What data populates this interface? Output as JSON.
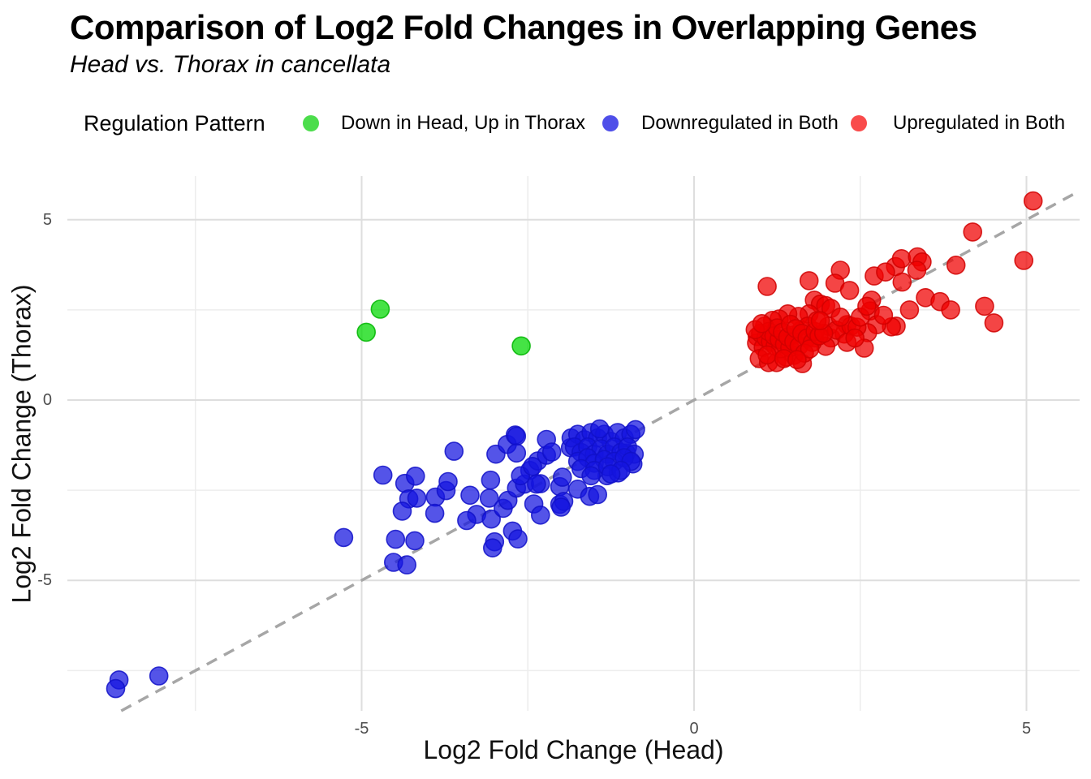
{
  "title": "Comparison of Log2 Fold Changes in Overlapping Genes",
  "subtitle": "Head vs. Thorax in cancellata",
  "legend": {
    "title": "Regulation Pattern",
    "items": [
      {
        "label": "Down in Head, Up in Thorax",
        "color": "#4cdd4c"
      },
      {
        "label": "Downregulated in Both",
        "color": "#4f4fe9"
      },
      {
        "label": "Upregulated in Both",
        "color": "#f94b4b"
      }
    ]
  },
  "styles": {
    "background": "#ffffff",
    "major_grid": "#dedede",
    "minor_grid": "#ededed",
    "tick_color": "#4d4d4d",
    "identity_line_color": "#a6a6a6",
    "title_color": "#000000"
  },
  "chart_data": {
    "type": "scatter",
    "title": "Comparison of Log2 Fold Changes in Overlapping Genes",
    "subtitle": "Head vs. Thorax in cancellata",
    "xlabel": "Log2 Fold Change (Head)",
    "ylabel": "Log2 Fold Change (Thorax)",
    "legend_title": "Regulation Pattern",
    "legend_position": "top",
    "grid": true,
    "xlim": [
      -9.4,
      5.8
    ],
    "ylim": [
      -8.6,
      6.2
    ],
    "x_major_ticks": [
      -5,
      0,
      5
    ],
    "x_minor_ticks": [
      -7.5,
      -2.5,
      2.5
    ],
    "y_major_ticks": [
      5,
      0,
      -5
    ],
    "y_minor_ticks": [
      2.5,
      -2.5,
      -7.5
    ],
    "identity_line": {
      "style": "dashed",
      "equation": "y = x"
    },
    "series": [
      {
        "name": "Down in Head, Up in Thorax",
        "color_base": "#00d800",
        "stroke": "#00b400",
        "points": [
          [
            -4.72,
            2.52
          ],
          [
            -4.93,
            1.88
          ],
          [
            -2.6,
            1.5
          ]
        ]
      },
      {
        "name": "Downregulated in Both",
        "color_base": "#1515e0",
        "stroke": "#1111c8",
        "points": [
          [
            -8.65,
            -7.76
          ],
          [
            -8.7,
            -8.0
          ],
          [
            -8.05,
            -7.65
          ],
          [
            -5.27,
            -3.81
          ],
          [
            -4.68,
            -2.08
          ],
          [
            -4.35,
            -2.31
          ],
          [
            -4.19,
            -2.11
          ],
          [
            -4.29,
            -2.74
          ],
          [
            -4.17,
            -2.72
          ],
          [
            -4.39,
            -3.08
          ],
          [
            -4.49,
            -3.86
          ],
          [
            -4.2,
            -3.9
          ],
          [
            -4.52,
            -4.5
          ],
          [
            -4.32,
            -4.57
          ],
          [
            -3.89,
            -2.69
          ],
          [
            -3.73,
            -2.51
          ],
          [
            -3.7,
            -2.26
          ],
          [
            -3.61,
            -1.42
          ],
          [
            -3.37,
            -2.64
          ],
          [
            -3.27,
            -3.17
          ],
          [
            -3.42,
            -3.34
          ],
          [
            -3.9,
            -3.14
          ],
          [
            -3.06,
            -2.22
          ],
          [
            -2.98,
            -1.5
          ],
          [
            -2.81,
            -1.23
          ],
          [
            -2.69,
            -0.97
          ],
          [
            -3.08,
            -2.72
          ],
          [
            -3.05,
            -3.3
          ],
          [
            -2.87,
            -3.0
          ],
          [
            -2.8,
            -2.78
          ],
          [
            -2.67,
            -2.44
          ],
          [
            -2.55,
            -2.33
          ],
          [
            -2.47,
            -1.95
          ],
          [
            -2.35,
            -1.69
          ],
          [
            -2.22,
            -1.53
          ],
          [
            -2.31,
            -2.32
          ],
          [
            -2.41,
            -2.88
          ],
          [
            -2.73,
            -3.63
          ],
          [
            -2.65,
            -3.85
          ],
          [
            -3.0,
            -3.93
          ],
          [
            -3.03,
            -4.1
          ],
          [
            -2.31,
            -3.19
          ],
          [
            -2.02,
            -2.89
          ],
          [
            -2.67,
            -1.0
          ],
          [
            -2.67,
            -1.47
          ],
          [
            -2.61,
            -2.1
          ],
          [
            -2.43,
            -1.84
          ],
          [
            -2.37,
            -2.33
          ],
          [
            -2.22,
            -1.09
          ],
          [
            -2.14,
            -1.44
          ],
          [
            -2.02,
            -2.4
          ],
          [
            -1.96,
            -2.81
          ],
          [
            -1.98,
            -2.14
          ],
          [
            -1.86,
            -1.32
          ],
          [
            -1.75,
            -2.47
          ],
          [
            -1.57,
            -2.67
          ],
          [
            -1.45,
            -2.62
          ],
          [
            -1.31,
            -2.1
          ],
          [
            -1.14,
            -2.02
          ],
          [
            -1.02,
            -1.47
          ],
          [
            -0.92,
            -1.77
          ],
          [
            -2.0,
            -2.97
          ],
          [
            -1.85,
            -1.05
          ],
          [
            -1.75,
            -0.95
          ],
          [
            -1.65,
            -1.1
          ],
          [
            -1.55,
            -0.9
          ],
          [
            -1.45,
            -1.05
          ],
          [
            -1.35,
            -0.95
          ],
          [
            -1.25,
            -1.15
          ],
          [
            -1.15,
            -0.9
          ],
          [
            -1.05,
            -1.05
          ],
          [
            -0.95,
            -0.95
          ],
          [
            -1.8,
            -1.3
          ],
          [
            -1.7,
            -1.45
          ],
          [
            -1.6,
            -1.3
          ],
          [
            -1.5,
            -1.5
          ],
          [
            -1.4,
            -1.35
          ],
          [
            -1.3,
            -1.5
          ],
          [
            -1.2,
            -1.3
          ],
          [
            -1.1,
            -1.45
          ],
          [
            -1.0,
            -1.3
          ],
          [
            -0.9,
            -1.5
          ],
          [
            -1.75,
            -1.7
          ],
          [
            -1.6,
            -1.6
          ],
          [
            -1.5,
            -1.75
          ],
          [
            -1.35,
            -1.65
          ],
          [
            -1.2,
            -1.7
          ],
          [
            -1.05,
            -1.6
          ],
          [
            -0.95,
            -1.7
          ],
          [
            -1.7,
            -1.9
          ],
          [
            -1.5,
            -1.95
          ],
          [
            -1.3,
            -1.85
          ],
          [
            -1.1,
            -1.95
          ],
          [
            -1.55,
            -2.1
          ],
          [
            -1.25,
            -2.05
          ],
          [
            -0.88,
            -0.82
          ],
          [
            -1.42,
            -0.8
          ]
        ]
      },
      {
        "name": "Upregulated in Both",
        "color_base": "#f00000",
        "stroke": "#d00000",
        "points": [
          [
            1.1,
            3.15
          ],
          [
            1.73,
            3.31
          ],
          [
            2.2,
            3.6
          ],
          [
            2.12,
            3.24
          ],
          [
            2.34,
            3.04
          ],
          [
            2.71,
            3.44
          ],
          [
            3.03,
            3.7
          ],
          [
            3.12,
            3.92
          ],
          [
            3.36,
            3.97
          ],
          [
            3.43,
            3.83
          ],
          [
            3.94,
            3.74
          ],
          [
            4.19,
            4.66
          ],
          [
            4.96,
            3.87
          ],
          [
            5.1,
            5.52
          ],
          [
            3.48,
            2.84
          ],
          [
            3.7,
            2.73
          ],
          [
            3.86,
            2.5
          ],
          [
            4.37,
            2.6
          ],
          [
            4.51,
            2.14
          ],
          [
            3.24,
            2.5
          ],
          [
            3.04,
            2.05
          ],
          [
            2.97,
            2.03
          ],
          [
            2.67,
            2.77
          ],
          [
            2.65,
            2.47
          ],
          [
            2.75,
            2.09
          ],
          [
            2.61,
            1.87
          ],
          [
            2.56,
            1.44
          ],
          [
            2.06,
            1.72
          ],
          [
            2.26,
            1.83
          ],
          [
            2.3,
            2.09
          ],
          [
            1.81,
            2.77
          ],
          [
            1.9,
            2.66
          ],
          [
            1.98,
            2.62
          ],
          [
            2.06,
            2.54
          ],
          [
            1.73,
            2.39
          ],
          [
            1.57,
            2.32
          ],
          [
            1.41,
            2.39
          ],
          [
            1.28,
            2.25
          ],
          [
            1.18,
            2.21
          ],
          [
            1.06,
            2.05
          ],
          [
            0.95,
            1.76
          ],
          [
            0.94,
            1.58
          ],
          [
            1.04,
            1.46
          ],
          [
            0.98,
            1.15
          ],
          [
            1.12,
            1.04
          ],
          [
            1.24,
            1.04
          ],
          [
            1.39,
            1.19
          ],
          [
            1.5,
            1.24
          ],
          [
            1.63,
            1.01
          ],
          [
            1.37,
            1.64
          ],
          [
            1.49,
            1.8
          ],
          [
            1.61,
            1.94
          ],
          [
            1.71,
            2.05
          ],
          [
            2.02,
            2.05
          ],
          [
            2.14,
            1.94
          ],
          [
            2.36,
            2.05
          ],
          [
            2.45,
            2.02
          ],
          [
            1.98,
            1.49
          ],
          [
            1.81,
            1.72
          ],
          [
            3.13,
            3.27
          ],
          [
            1.0,
            1.85
          ],
          [
            1.08,
            1.72
          ],
          [
            1.15,
            1.62
          ],
          [
            1.22,
            1.5
          ],
          [
            1.3,
            1.42
          ],
          [
            1.12,
            1.9
          ],
          [
            1.2,
            1.78
          ],
          [
            1.28,
            1.68
          ],
          [
            1.36,
            1.55
          ],
          [
            1.44,
            1.45
          ],
          [
            1.25,
            2.0
          ],
          [
            1.33,
            1.88
          ],
          [
            1.41,
            1.75
          ],
          [
            1.5,
            1.62
          ],
          [
            1.58,
            1.5
          ],
          [
            1.45,
            2.1
          ],
          [
            1.53,
            1.98
          ],
          [
            1.62,
            1.85
          ],
          [
            1.7,
            1.72
          ],
          [
            1.78,
            1.6
          ],
          [
            1.66,
            1.3
          ],
          [
            1.74,
            1.42
          ],
          [
            1.82,
            1.9
          ],
          [
            1.88,
            1.78
          ],
          [
            1.95,
            1.85
          ],
          [
            1.1,
            1.25
          ],
          [
            1.35,
            1.15
          ],
          [
            1.55,
            1.12
          ],
          [
            1.85,
            2.2
          ],
          [
            2.2,
            2.3
          ],
          [
            2.5,
            2.3
          ],
          [
            2.3,
            1.6
          ],
          [
            2.42,
            1.72
          ],
          [
            1.9,
            2.2
          ],
          [
            2.6,
            2.6
          ],
          [
            0.92,
            1.95
          ],
          [
            1.02,
            2.12
          ],
          [
            2.85,
            2.35
          ],
          [
            3.35,
            3.6
          ],
          [
            2.88,
            3.55
          ]
        ]
      }
    ]
  }
}
